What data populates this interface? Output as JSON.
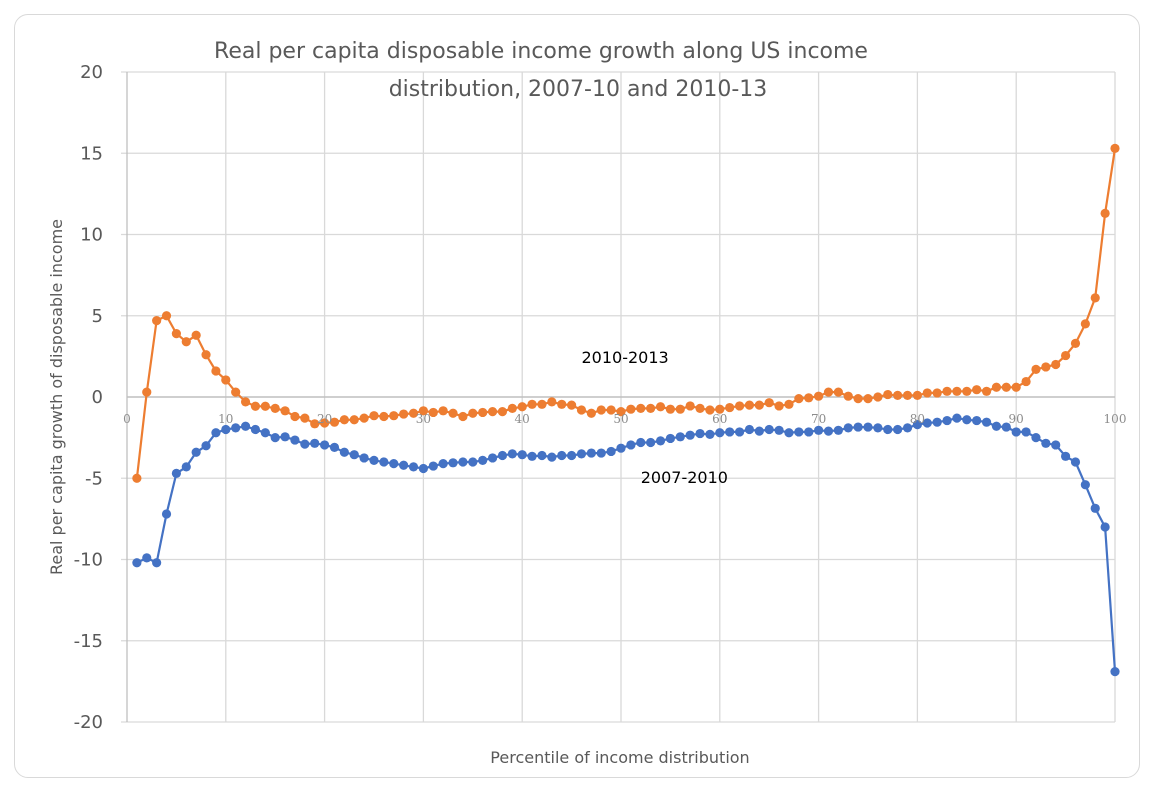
{
  "chart_data": {
    "type": "line",
    "title_lines": [
      "Real per capita disposable income growth along US income",
      "distribution, 2007-10 and 2010-13"
    ],
    "xlabel": "Percentile of income distribution",
    "ylabel": "Real per capita growth of disposable income",
    "xlim": [
      0,
      100
    ],
    "ylim": [
      -20,
      20
    ],
    "xticks": [
      "0",
      "10",
      "20",
      "30",
      "40",
      "50",
      "60",
      "70",
      "80",
      "90",
      "100"
    ],
    "xtick_values": [
      0,
      10,
      20,
      30,
      40,
      50,
      60,
      70,
      80,
      90,
      100
    ],
    "yticks": [
      "20",
      "15",
      "10",
      "5",
      "0",
      "-5",
      "-10",
      "-15",
      "-20"
    ],
    "ytick_values": [
      20,
      15,
      10,
      5,
      0,
      -5,
      -10,
      -15,
      -20
    ],
    "grid": true,
    "x": [
      1,
      2,
      3,
      4,
      5,
      6,
      7,
      8,
      9,
      10,
      11,
      12,
      13,
      14,
      15,
      16,
      17,
      18,
      19,
      20,
      21,
      22,
      23,
      24,
      25,
      26,
      27,
      28,
      29,
      30,
      31,
      32,
      33,
      34,
      35,
      36,
      37,
      38,
      39,
      40,
      41,
      42,
      43,
      44,
      45,
      46,
      47,
      48,
      49,
      50,
      51,
      52,
      53,
      54,
      55,
      56,
      57,
      58,
      59,
      60,
      61,
      62,
      63,
      64,
      65,
      66,
      67,
      68,
      69,
      70,
      71,
      72,
      73,
      74,
      75,
      76,
      77,
      78,
      79,
      80,
      81,
      82,
      83,
      84,
      85,
      86,
      87,
      88,
      89,
      90,
      91,
      92,
      93,
      94,
      95,
      96,
      97,
      98,
      99,
      100
    ],
    "series": [
      {
        "name": "2010-2013",
        "color": "#ED7D31",
        "values": [
          -5.0,
          0.3,
          4.7,
          5.0,
          3.9,
          3.4,
          3.8,
          2.6,
          1.6,
          1.05,
          0.3,
          -0.3,
          -0.57,
          -0.57,
          -0.7,
          -0.85,
          -1.2,
          -1.3,
          -1.65,
          -1.6,
          -1.55,
          -1.4,
          -1.4,
          -1.3,
          -1.15,
          -1.2,
          -1.15,
          -1.05,
          -1.0,
          -0.85,
          -0.95,
          -0.85,
          -1.0,
          -1.2,
          -1.0,
          -0.95,
          -0.9,
          -0.9,
          -0.7,
          -0.6,
          -0.45,
          -0.45,
          -0.3,
          -0.45,
          -0.5,
          -0.8,
          -1.0,
          -0.8,
          -0.8,
          -0.9,
          -0.75,
          -0.7,
          -0.7,
          -0.6,
          -0.75,
          -0.75,
          -0.55,
          -0.7,
          -0.8,
          -0.75,
          -0.65,
          -0.55,
          -0.5,
          -0.5,
          -0.35,
          -0.55,
          -0.45,
          -0.1,
          -0.05,
          0.05,
          0.3,
          0.3,
          0.05,
          -0.1,
          -0.1,
          0.0,
          0.15,
          0.1,
          0.1,
          0.1,
          0.25,
          0.25,
          0.35,
          0.35,
          0.35,
          0.45,
          0.35,
          0.6,
          0.6,
          0.6,
          0.95,
          1.7,
          1.85,
          2.0,
          2.55,
          3.3,
          4.5,
          6.1,
          11.3,
          15.3
        ]
      },
      {
        "name": "2007-2010",
        "color": "#4472C4",
        "values": [
          -10.2,
          -9.9,
          -10.2,
          -7.2,
          -4.7,
          -4.3,
          -3.4,
          -3.0,
          -2.2,
          -2.0,
          -1.9,
          -1.8,
          -2.0,
          -2.2,
          -2.5,
          -2.45,
          -2.65,
          -2.9,
          -2.85,
          -2.95,
          -3.1,
          -3.4,
          -3.55,
          -3.75,
          -3.9,
          -4.0,
          -4.1,
          -4.2,
          -4.3,
          -4.4,
          -4.25,
          -4.1,
          -4.05,
          -4.0,
          -4.0,
          -3.9,
          -3.75,
          -3.6,
          -3.5,
          -3.55,
          -3.65,
          -3.6,
          -3.7,
          -3.6,
          -3.6,
          -3.5,
          -3.45,
          -3.45,
          -3.35,
          -3.15,
          -2.95,
          -2.8,
          -2.8,
          -2.7,
          -2.55,
          -2.45,
          -2.35,
          -2.25,
          -2.3,
          -2.2,
          -2.15,
          -2.15,
          -2.0,
          -2.1,
          -2.0,
          -2.05,
          -2.2,
          -2.15,
          -2.15,
          -2.05,
          -2.1,
          -2.05,
          -1.9,
          -1.85,
          -1.85,
          -1.9,
          -2.0,
          -2.0,
          -1.9,
          -1.7,
          -1.6,
          -1.55,
          -1.45,
          -1.3,
          -1.4,
          -1.45,
          -1.55,
          -1.8,
          -1.85,
          -2.15,
          -2.15,
          -2.5,
          -2.85,
          -2.95,
          -3.65,
          -4.0,
          -5.4,
          -6.85,
          -8.0,
          -16.9
        ]
      }
    ],
    "annotations": [
      {
        "text": "2010-2013",
        "x": 46,
        "y": 2.1
      },
      {
        "text": "2007-2010",
        "x": 52,
        "y": -5.3
      }
    ],
    "legend": "none"
  }
}
